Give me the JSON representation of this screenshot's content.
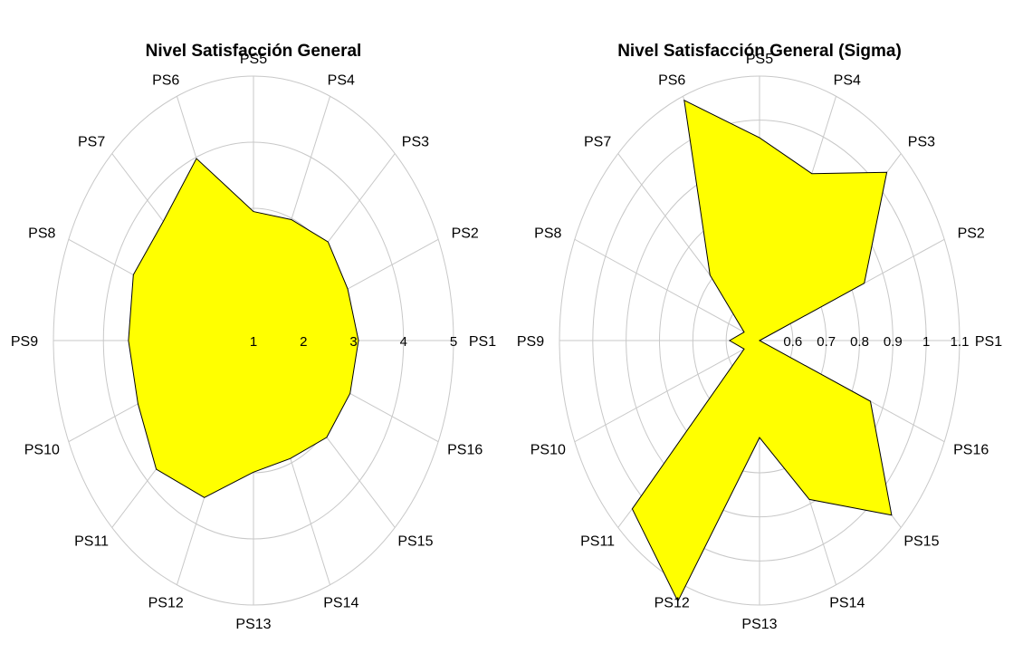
{
  "chart_data": [
    {
      "type": "radar",
      "title": "Nivel Satisfacción General",
      "categories": [
        "PS1",
        "PS2",
        "PS3",
        "PS4",
        "PS5",
        "PS6",
        "PS7",
        "PS8",
        "PS9",
        "PS10",
        "PS11",
        "PS12",
        "PS13",
        "PS14",
        "PS15",
        "PS16"
      ],
      "rlim": [
        1,
        5
      ],
      "ticks": [
        "1",
        "2",
        "3",
        "4",
        "5"
      ],
      "tick_values": [
        1,
        2,
        3,
        4,
        5
      ],
      "series": [
        {
          "values": [
            3.1,
            3.04,
            3.11,
            2.98,
            2.95,
            3.98,
            3.55,
            3.6,
            3.5,
            3.5,
            3.75,
            3.57,
            2.99,
            2.93,
            3.07,
            3.09
          ]
        }
      ],
      "fill_color": "#ffff00",
      "grid": true
    },
    {
      "type": "radar",
      "title": "Nivel Satisfacción General (Sigma)",
      "categories": [
        "PS1",
        "PS2",
        "PS3",
        "PS4",
        "PS5",
        "PS6",
        "PS7",
        "PS8",
        "PS9",
        "PS10",
        "PS11",
        "PS12",
        "PS13",
        "PS14",
        "PS15",
        "PS16"
      ],
      "rlim": [
        0.5,
        1.1
      ],
      "ticks": [
        "0.6",
        "0.7",
        "0.8",
        "0.9",
        "1",
        "1.1"
      ],
      "tick_values": [
        0.6,
        0.7,
        0.8,
        0.9,
        1.0,
        1.1
      ],
      "series": [
        {
          "values": [
            0.5,
            0.84,
            1.04,
            0.91,
            0.96,
            1.09,
            0.71,
            0.55,
            0.59,
            0.55,
            1.04,
            1.14,
            0.72,
            0.89,
            1.06,
            0.86
          ]
        }
      ],
      "fill_color": "#ffff00",
      "grid": true
    }
  ]
}
